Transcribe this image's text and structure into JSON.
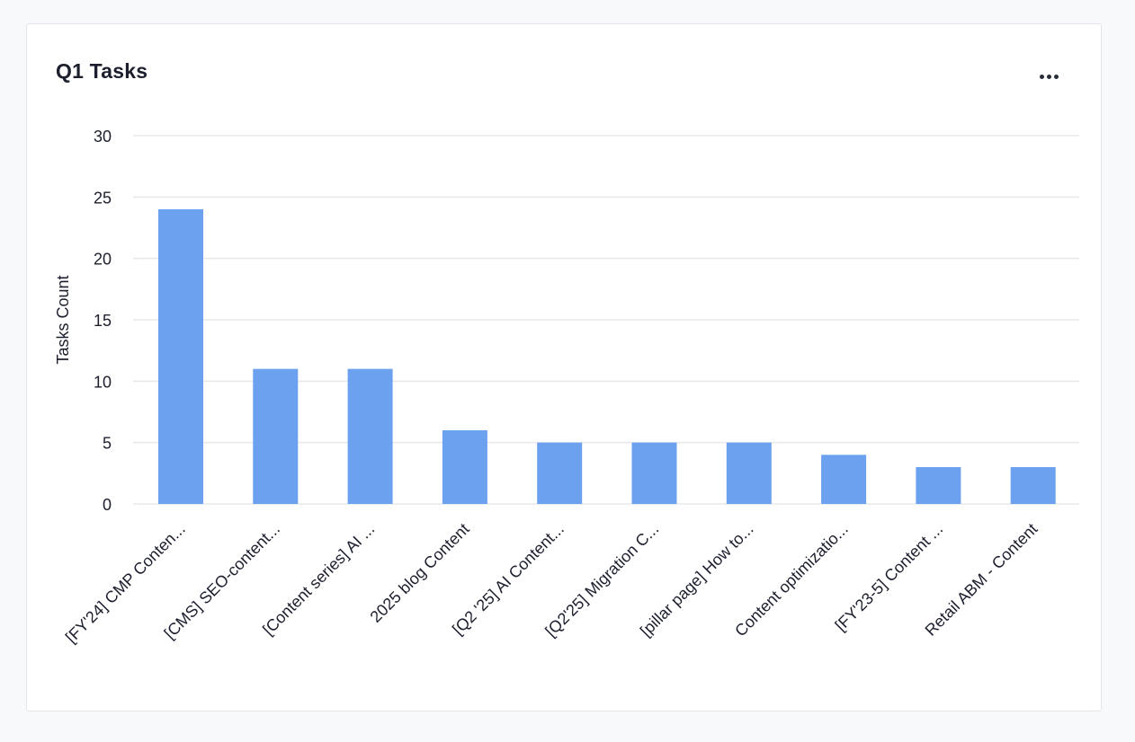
{
  "card": {
    "title": "Q1 Tasks",
    "more_icon": "more-horizontal-icon"
  },
  "chart_data": {
    "type": "bar",
    "title": "Q1 Tasks",
    "xlabel": "",
    "ylabel": "Tasks Count",
    "ylim": [
      0,
      30
    ],
    "yticks": [
      0,
      5,
      10,
      15,
      20,
      25,
      30
    ],
    "grid": true,
    "bar_color": "#6ba1ef",
    "grid_color": "#e6e8ec",
    "categories": [
      "[FY'24] CMP Conten...",
      "[CMS] SEO-content...",
      "[Content series] AI ...",
      "2025 blog Content",
      "[Q2 '25] AI Content...",
      "[Q2'25] Migration C...",
      "[pillar page] How to...",
      "Content optimizatio...",
      "[FY'23-5] Content ...",
      "Retail ABM - Content"
    ],
    "values": [
      24,
      11,
      11,
      6,
      5,
      5,
      5,
      4,
      3,
      3
    ]
  }
}
